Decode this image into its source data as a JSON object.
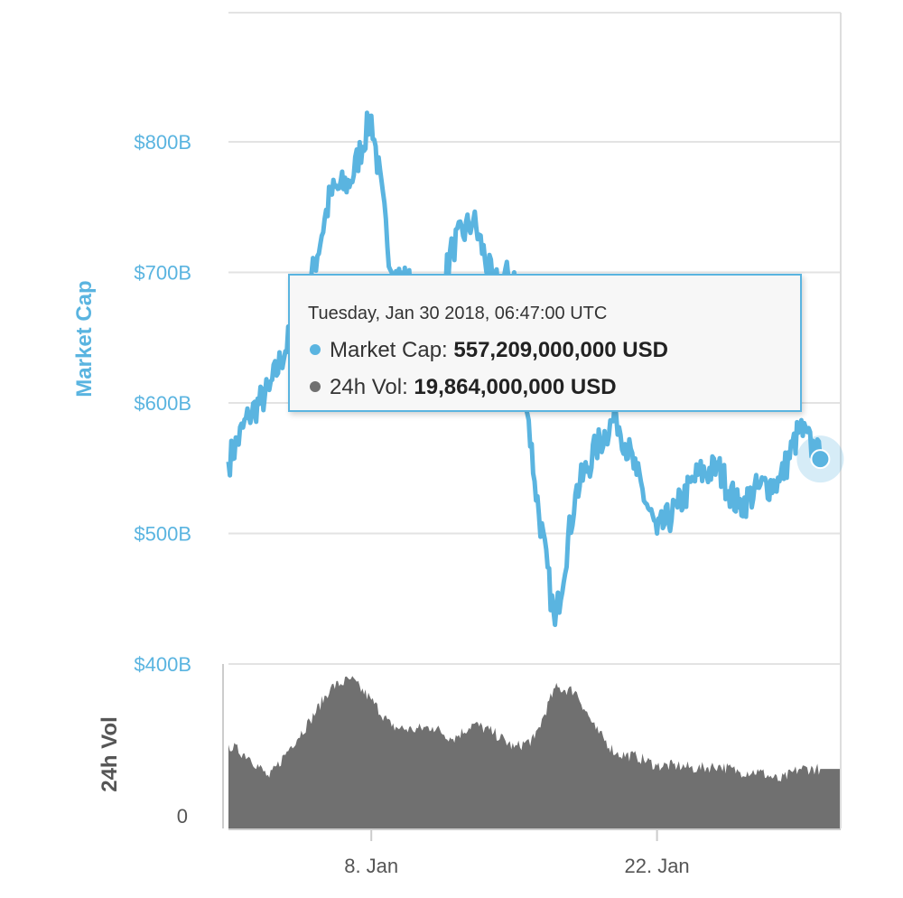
{
  "chart_data": [
    {
      "type": "line",
      "ylabel": "Market Cap",
      "y_ticks": [
        "$400B",
        "$500B",
        "$600B",
        "$700B",
        "$800B"
      ],
      "ylim": [
        400,
        800
      ],
      "x_ticks": [
        "8. Jan",
        "22. Jan"
      ],
      "xlim": [
        "2018-01-01",
        "2018-01-31"
      ],
      "grid": true,
      "color": "#5ab4e0",
      "series": [
        {
          "name": "Market Cap",
          "unit": "billion USD",
          "x": [
            "2018-01-01",
            "2018-01-02",
            "2018-01-03",
            "2018-01-04",
            "2018-01-05",
            "2018-01-06",
            "2018-01-07",
            "2018-01-08",
            "2018-01-09",
            "2018-01-10",
            "2018-01-11",
            "2018-01-12",
            "2018-01-13",
            "2018-01-14",
            "2018-01-15",
            "2018-01-16",
            "2018-01-17",
            "2018-01-18",
            "2018-01-19",
            "2018-01-20",
            "2018-01-21",
            "2018-01-22",
            "2018-01-23",
            "2018-01-24",
            "2018-01-25",
            "2018-01-26",
            "2018-01-27",
            "2018-01-28",
            "2018-01-29",
            "2018-01-30"
          ],
          "values": [
            555,
            590,
            610,
            650,
            690,
            760,
            770,
            820,
            700,
            690,
            660,
            720,
            740,
            690,
            700,
            540,
            430,
            530,
            565,
            590,
            545,
            500,
            520,
            545,
            550,
            520,
            535,
            540,
            580,
            557
          ]
        }
      ]
    },
    {
      "type": "area",
      "ylabel": "24h Vol",
      "y_ticks": [
        "0"
      ],
      "ylim": [
        0,
        55
      ],
      "grid": false,
      "color": "#707070",
      "series": [
        {
          "name": "24h Vol",
          "unit": "billion USD",
          "x": [
            "2018-01-01",
            "2018-01-02",
            "2018-01-03",
            "2018-01-04",
            "2018-01-05",
            "2018-01-06",
            "2018-01-07",
            "2018-01-08",
            "2018-01-09",
            "2018-01-10",
            "2018-01-11",
            "2018-01-12",
            "2018-01-13",
            "2018-01-14",
            "2018-01-15",
            "2018-01-16",
            "2018-01-17",
            "2018-01-18",
            "2018-01-19",
            "2018-01-20",
            "2018-01-21",
            "2018-01-22",
            "2018-01-23",
            "2018-01-24",
            "2018-01-25",
            "2018-01-26",
            "2018-01-27",
            "2018-01-28",
            "2018-01-29",
            "2018-01-30"
          ],
          "values": [
            28,
            24,
            17,
            27,
            36,
            47,
            50,
            43,
            34,
            33,
            34,
            30,
            35,
            32,
            27,
            30,
            47,
            46,
            33,
            25,
            24,
            21,
            21,
            20,
            21,
            19,
            19,
            16,
            20,
            19.9
          ]
        }
      ]
    }
  ],
  "tooltip": {
    "date": "Tuesday, Jan 30 2018, 06:47:00 UTC",
    "market_cap_label": "Market Cap:",
    "market_cap_value": "557,209,000,000 USD",
    "vol_label": "24h Vol:",
    "vol_value": "19,864,000,000 USD",
    "market_cap_color": "#5ab4e0",
    "vol_color": "#707070"
  }
}
